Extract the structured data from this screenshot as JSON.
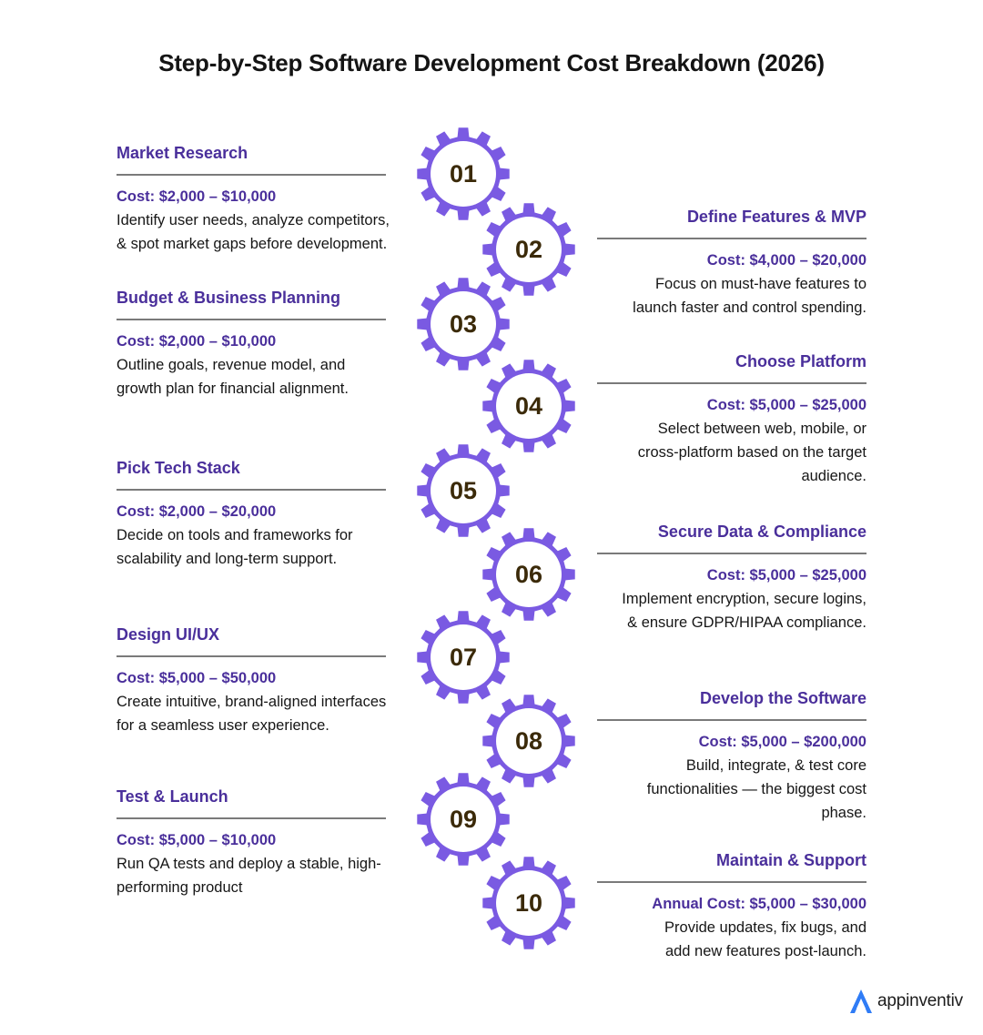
{
  "title": "Step-by-Step Software Development Cost Breakdown (2026)",
  "colors": {
    "accent": "#7a5ae2",
    "heading": "#4a2f9b",
    "number": "#3b2a09"
  },
  "steps": [
    {
      "number": "01",
      "title": "Market Research",
      "cost": "Cost: $2,000 – $10,000",
      "desc_lines": [
        "Identify user needs, analyze competitors,",
        "& spot market gaps before development."
      ]
    },
    {
      "number": "02",
      "title": "Define Features & MVP",
      "cost": "Cost: $4,000 – $20,000",
      "desc_lines": [
        "Focus on must-have features to",
        "launch faster and control spending."
      ]
    },
    {
      "number": "03",
      "title": "Budget & Business Planning",
      "cost": "Cost: $2,000 – $10,000",
      "desc_lines": [
        "Outline goals, revenue model, and",
        "growth plan for financial alignment."
      ]
    },
    {
      "number": "04",
      "title": "Choose Platform",
      "cost": "Cost: $5,000 – $25,000",
      "desc_lines": [
        "Select between web, mobile, or",
        "cross-platform based on the target",
        "audience."
      ]
    },
    {
      "number": "05",
      "title": "Pick Tech Stack",
      "cost": "Cost: $2,000 – $20,000",
      "desc_lines": [
        "Decide on tools and frameworks for",
        "scalability and long-term support."
      ]
    },
    {
      "number": "06",
      "title": "Secure Data & Compliance",
      "cost": "Cost: $5,000 – $25,000",
      "desc_lines": [
        "Implement encryption, secure logins,",
        "& ensure GDPR/HIPAA compliance."
      ]
    },
    {
      "number": "07",
      "title": "Design UI/UX",
      "cost": "Cost: $5,000 – $50,000",
      "desc_lines": [
        "Create intuitive, brand-aligned interfaces",
        "for a seamless user experience."
      ]
    },
    {
      "number": "08",
      "title": "Develop the Software",
      "cost": "Cost: $5,000 – $200,000",
      "desc_lines": [
        "Build, integrate, & test core",
        "functionalities — the biggest cost",
        "phase."
      ]
    },
    {
      "number": "09",
      "title": "Test & Launch",
      "cost": "Cost: $5,000 – $10,000",
      "desc_lines": [
        "Run QA tests and deploy a stable, high-",
        "performing product"
      ]
    },
    {
      "number": "10",
      "title": "Maintain & Support",
      "cost": "Annual Cost: $5,000 – $30,000",
      "desc_lines": [
        "Provide updates, fix bugs, and",
        "add new features post-launch."
      ]
    }
  ],
  "logo": {
    "text": "appinventiv",
    "icon": "appinventiv-logo-icon"
  }
}
